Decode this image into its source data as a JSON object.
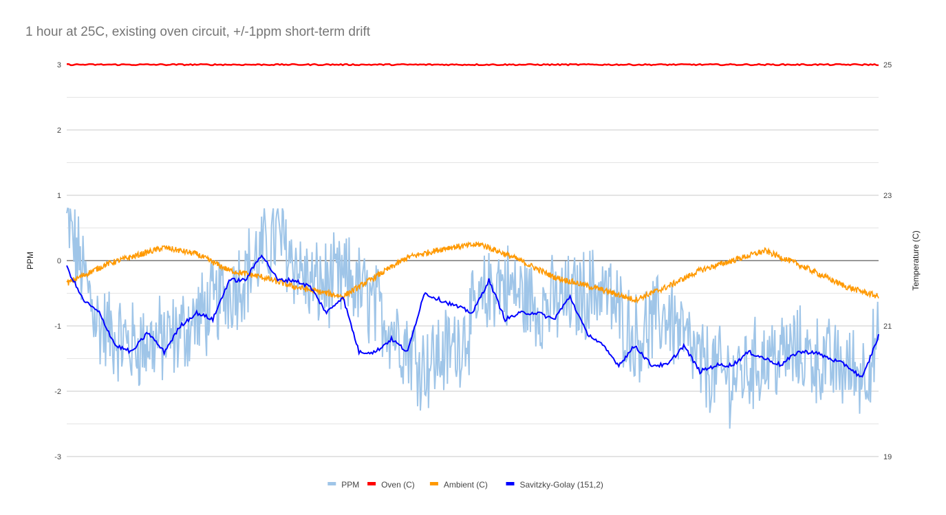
{
  "chart_data": {
    "type": "line",
    "title": "1 hour at 25C, existing oven circuit, +/-1ppm short-term drift",
    "y_left": {
      "label": "PPM",
      "range": [
        -3,
        3
      ],
      "ticks": [
        "3",
        "2",
        "1",
        "0",
        "-1",
        "-2",
        "-3"
      ]
    },
    "y_right": {
      "label": "Temperature (C)",
      "range": [
        19,
        25
      ],
      "ticks": [
        "25",
        "23",
        "21",
        "19"
      ]
    },
    "grid": true,
    "legend_position": "bottom",
    "series_style": {
      "PPM": "#9fc5e8",
      "Oven (C)": "#ff0000",
      "Ambient (C)": "#ff9900",
      "Savitzky-Golay (151,2)": "#0000ff"
    },
    "series": [
      {
        "name": "PPM",
        "axis": "left",
        "color": "#9fc5e8",
        "note_points": "noisy raw series; key points (sample index 0-100)",
        "x": [
          0,
          4,
          8,
          13,
          18,
          22,
          26,
          30,
          35,
          40,
          44,
          48,
          53,
          58,
          62,
          66,
          70,
          74,
          78,
          82,
          86,
          90,
          94,
          98,
          100
        ],
        "values": [
          0.6,
          -1.0,
          -1.3,
          -1.2,
          -0.7,
          -0.2,
          0.4,
          -0.4,
          -0.3,
          -1.0,
          -1.6,
          -1.3,
          -0.3,
          -0.7,
          -0.6,
          -0.4,
          -1.2,
          -0.8,
          -1.6,
          -1.8,
          -1.5,
          -1.4,
          -1.6,
          -1.7,
          -1.3
        ]
      },
      {
        "name": "Oven (C)",
        "axis": "right",
        "color": "#ff0000",
        "x": [
          0,
          100
        ],
        "values": [
          25.0,
          25.0
        ]
      },
      {
        "name": "Ambient (C)",
        "axis": "right",
        "color": "#ff9900",
        "x": [
          0,
          5,
          12,
          16,
          20,
          24,
          28,
          34,
          38,
          42,
          47,
          51,
          55,
          60,
          66,
          70,
          74,
          78,
          82,
          86,
          90,
          96,
          100
        ],
        "values": [
          21.65,
          21.95,
          22.2,
          22.1,
          21.85,
          21.75,
          21.6,
          21.45,
          21.75,
          22.05,
          22.2,
          22.25,
          22.05,
          21.75,
          21.55,
          21.4,
          21.6,
          21.85,
          22.0,
          22.15,
          21.95,
          21.6,
          21.45
        ]
      },
      {
        "name": "Savitzky-Golay (151,2)",
        "axis": "left",
        "color": "#0000ff",
        "x": [
          0,
          2,
          4,
          6,
          8,
          10,
          12,
          14,
          16,
          18,
          20,
          22,
          24,
          26,
          28,
          30,
          32,
          34,
          36,
          38,
          40,
          42,
          44,
          46,
          48,
          50,
          52,
          54,
          56,
          58,
          60,
          62,
          64,
          66,
          68,
          70,
          72,
          74,
          76,
          78,
          80,
          82,
          84,
          86,
          88,
          90,
          92,
          94,
          96,
          98,
          100
        ],
        "values": [
          -0.1,
          -0.6,
          -0.8,
          -1.3,
          -1.4,
          -1.1,
          -1.4,
          -1.0,
          -0.8,
          -0.9,
          -0.3,
          -0.3,
          0.1,
          -0.3,
          -0.3,
          -0.4,
          -0.8,
          -0.55,
          -1.4,
          -1.4,
          -1.2,
          -1.4,
          -0.5,
          -0.6,
          -0.7,
          -0.8,
          -0.3,
          -0.9,
          -0.8,
          -0.8,
          -0.9,
          -0.55,
          -1.1,
          -1.3,
          -1.6,
          -1.3,
          -1.6,
          -1.6,
          -1.3,
          -1.7,
          -1.6,
          -1.6,
          -1.4,
          -1.5,
          -1.6,
          -1.4,
          -1.4,
          -1.5,
          -1.6,
          -1.8,
          -1.15
        ]
      }
    ],
    "legend": [
      "PPM",
      "Oven (C)",
      "Ambient (C)",
      "Savitzky-Golay (151,2)"
    ]
  }
}
